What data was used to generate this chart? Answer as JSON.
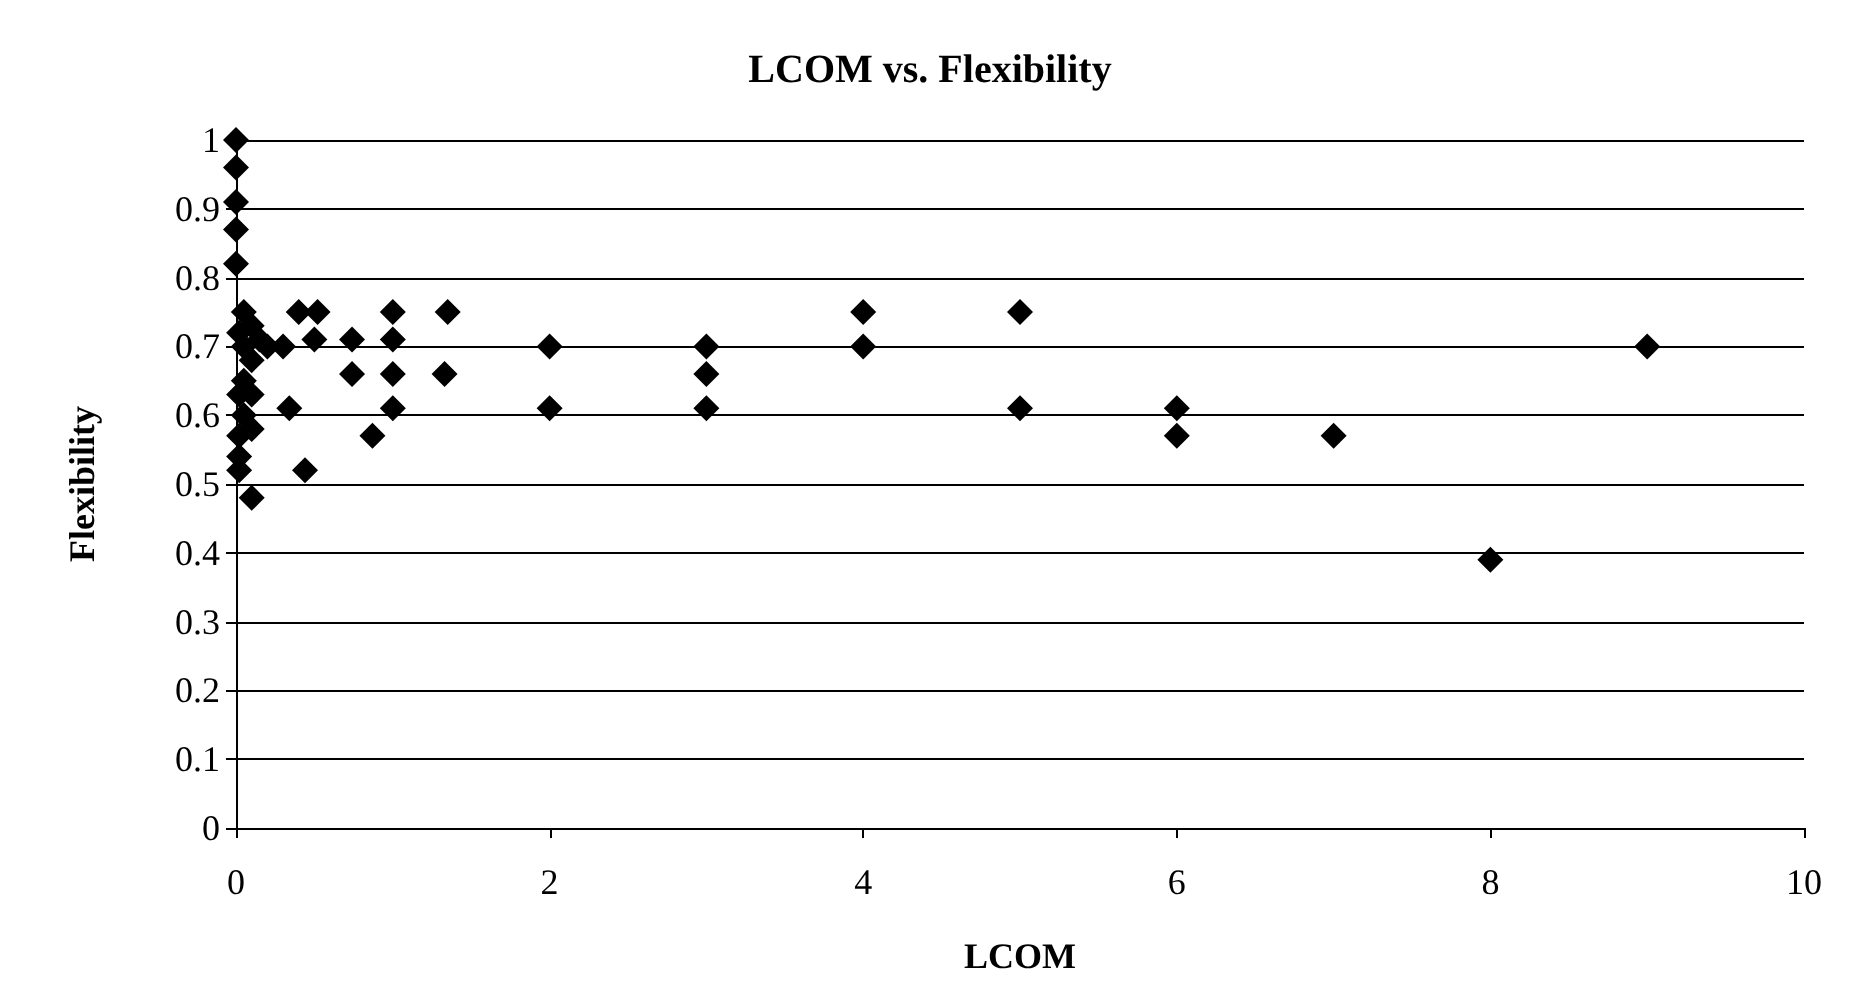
{
  "chart_data": {
    "type": "scatter",
    "title": "LCOM vs. Flexibility",
    "xlabel": "LCOM",
    "ylabel": "Flexibility",
    "marker": "diamond",
    "grid": "y",
    "xlim": [
      0,
      10
    ],
    "xticks": [
      0,
      2,
      4,
      6,
      8,
      10
    ],
    "ylim": [
      0,
      1
    ],
    "yticks": [
      0,
      0.1,
      0.2,
      0.3,
      0.4,
      0.5,
      0.6,
      0.7,
      0.8,
      0.9,
      1
    ],
    "series": [
      {
        "color": "#000000",
        "x": [
          0,
          0,
          0,
          0,
          0,
          0.02,
          0.02,
          0.02,
          0.02,
          0.02,
          0.05,
          0.05,
          0.05,
          0.05,
          0.1,
          0.1,
          0.1,
          0.1,
          0.1,
          0.15,
          0.2,
          0.3,
          0.34,
          0.4,
          0.44,
          0.52,
          0.5,
          0.74,
          0.74,
          0.87,
          1,
          1,
          1,
          1,
          1.35,
          1.33,
          2,
          2,
          3,
          3,
          3,
          4,
          4,
          5,
          5,
          6,
          6,
          7,
          8,
          9
        ],
        "values": [
          1,
          0.96,
          0.91,
          0.87,
          0.82,
          0.72,
          0.63,
          0.57,
          0.54,
          0.52,
          0.75,
          0.7,
          0.65,
          0.6,
          0.73,
          0.68,
          0.63,
          0.58,
          0.48,
          0.71,
          0.7,
          0.7,
          0.61,
          0.75,
          0.52,
          0.75,
          0.71,
          0.71,
          0.66,
          0.57,
          0.75,
          0.71,
          0.66,
          0.61,
          0.75,
          0.66,
          0.7,
          0.61,
          0.7,
          0.66,
          0.61,
          0.75,
          0.7,
          0.75,
          0.61,
          0.61,
          0.57,
          0.57,
          0.39,
          0.7
        ]
      }
    ]
  }
}
